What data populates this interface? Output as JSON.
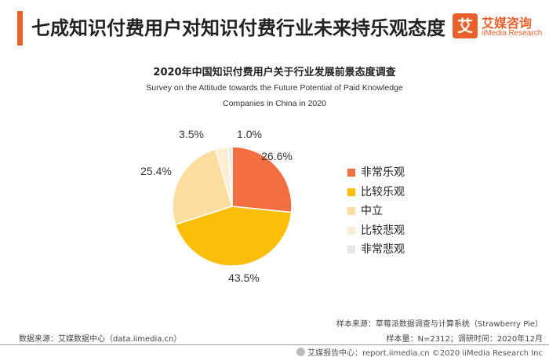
{
  "header": {
    "title": "七成知识付费用户对知识付费行业未来持乐观态度"
  },
  "logo": {
    "icon_char": "艾",
    "name_cn": "艾媒咨询",
    "name_en": "iiMedia Research",
    "brand_color": "#e8612c"
  },
  "chart_data": {
    "type": "pie",
    "title": "2020年中国知识付费用户关于行业发展前景态度调查",
    "subtitle_line1": "Survey on the Attitude towards the Future Potential of Paid Knowledge",
    "subtitle_line2": "Companies in China in 2020",
    "slices": [
      {
        "label": "非常乐观",
        "value": 26.6,
        "display": "26.6%",
        "color": "#f26f43"
      },
      {
        "label": "比较乐观",
        "value": 43.5,
        "display": "43.5%",
        "color": "#fbbe09"
      },
      {
        "label": "中立",
        "value": 25.4,
        "display": "25.4%",
        "color": "#fbdda0"
      },
      {
        "label": "比较悲观",
        "value": 3.5,
        "display": "3.5%",
        "color": "#fdeed3"
      },
      {
        "label": "非常悲观",
        "value": 1.0,
        "display": "1.0%",
        "color": "#e6e6e6"
      }
    ],
    "legend_position": "right"
  },
  "footer": {
    "data_source": "数据来源：艾媒数据中心（data.iimedia.cn）",
    "sample_source": "样本来源：草莓派数据调查与计算系统（Strawberry Pie）",
    "sample_size": "样本量：N=2312；调研时间：2020年12月",
    "copyright": "艾媒报告中心：report.iimedia.cn ©2020  iiMedia Research  Inc"
  }
}
